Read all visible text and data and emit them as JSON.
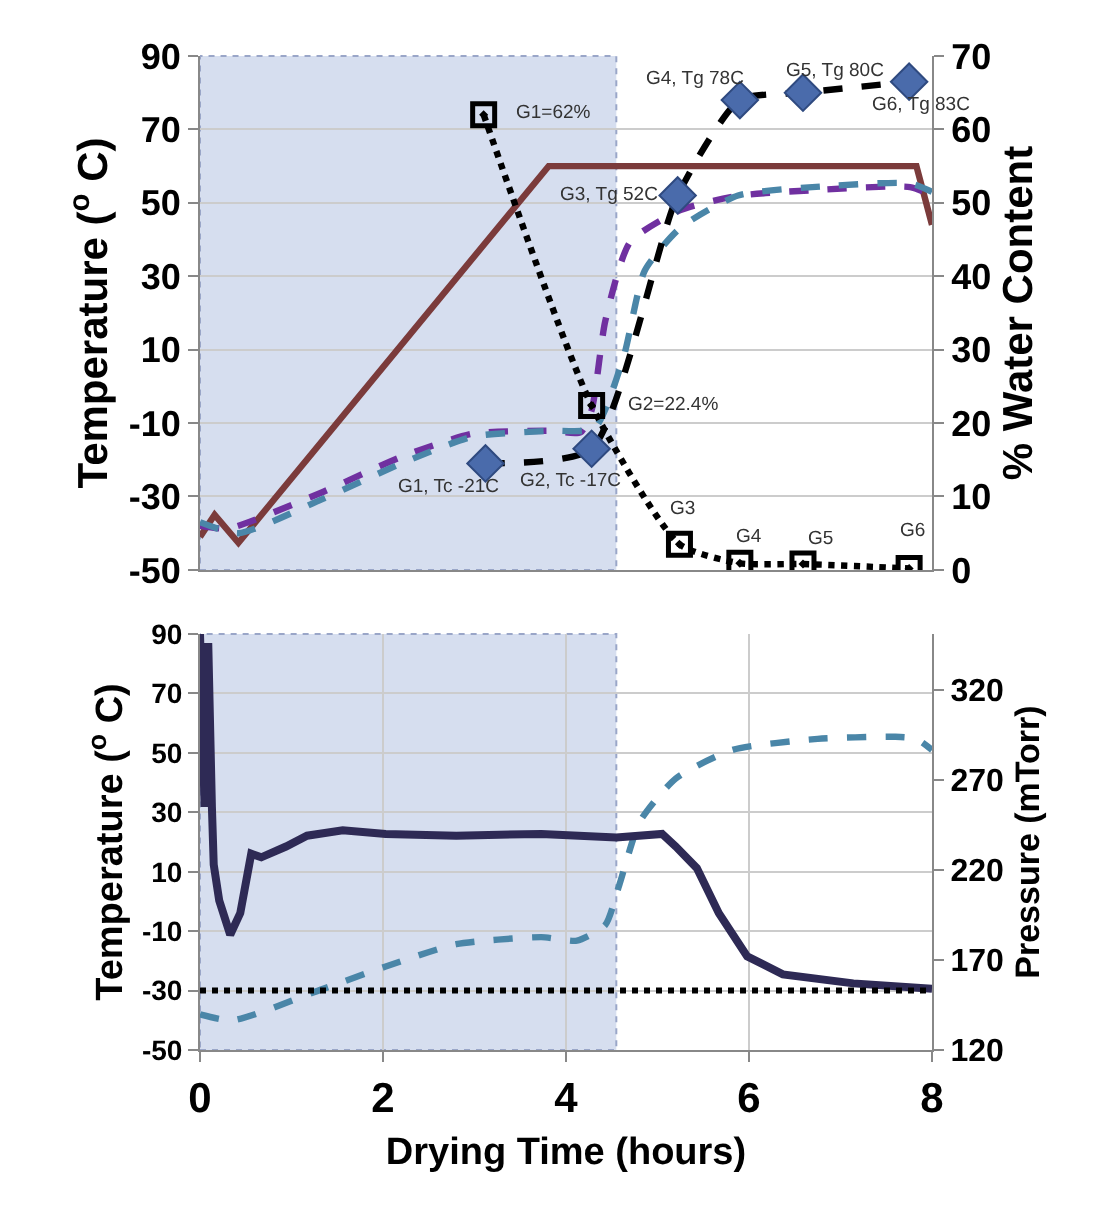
{
  "chart_data": [
    {
      "type": "line",
      "ylabel": "Temperature ($^{o}$ C)",
      "y2label": "% Water Content",
      "xlim": [
        0,
        8
      ],
      "ylim": [
        -50,
        90
      ],
      "yticks": [
        -50,
        -30,
        -10,
        10,
        30,
        50,
        70,
        90
      ],
      "y2lim": [
        0,
        70
      ],
      "y2ticks": [
        0,
        10,
        20,
        30,
        40,
        50,
        60,
        70
      ],
      "tick_labels": "y",
      "grid": "y",
      "bands": [
        {
          "axis": "x",
          "from": 0,
          "to": 4.55,
          "color": "#d6deef"
        }
      ],
      "series": [
        {
          "color": "#7b3b3b",
          "line_style": "solid",
          "marker": "none",
          "x": [
            0,
            0.16,
            0.42,
            3.81,
            7.83,
            8
          ],
          "values": [
            -41,
            -35,
            -42.6,
            60,
            60,
            44
          ]
        },
        {
          "color": "#7030a0",
          "line_style": "dashed",
          "marker": "none",
          "x": [
            0,
            0.31,
            1.33,
            2.2,
            2.98,
            3.81,
            4.16,
            4.28,
            4.43,
            4.7,
            5.25,
            5.88,
            6.67,
            7.76,
            8
          ],
          "values": [
            -38,
            -38.7,
            -28.9,
            -19.2,
            -12.9,
            -12.1,
            -12.5,
            -6.5,
            17.9,
            39.3,
            48,
            51.9,
            53.4,
            54.3,
            52
          ]
        },
        {
          "color": "#4a86a8",
          "line_style": "dashed",
          "marker": "none",
          "x": [
            0,
            0.42,
            1.33,
            2.2,
            2.98,
            3.81,
            4.31,
            4.63,
            4.86,
            5.25,
            5.88,
            6.82,
            7.76,
            8
          ],
          "values": [
            -37,
            -40,
            -30.8,
            -21,
            -13.7,
            -12.1,
            -11.4,
            8.1,
            31.5,
            43.2,
            52,
            54.5,
            55.3,
            53
          ]
        },
        {
          "color": "#000000",
          "line_style": "dashed",
          "marker": "none",
          "x": [
            3.12,
            4.28,
            5.22,
            5.9,
            6.59,
            7.75
          ],
          "values": [
            -21,
            -17,
            52,
            78,
            80,
            83
          ]
        },
        {
          "type": "scatter",
          "color": "#4a6bab",
          "marker": "diamond",
          "x": [
            3.12,
            4.28,
            5.22,
            5.9,
            6.59,
            7.75
          ],
          "values": [
            -21,
            -17,
            52,
            78,
            80,
            83
          ]
        },
        {
          "axis": "y2",
          "color": "#000000",
          "line_style": "dotted",
          "marker": "square",
          "x": [
            3.1,
            4.28,
            5.24,
            5.9,
            6.59,
            7.75
          ],
          "values": [
            62,
            22.4,
            3.5,
            0.9,
            0.8,
            0.2
          ]
        }
      ],
      "annotations": [
        {
          "text": "G1, Tc -21C",
          "x": 3.12,
          "y": -21
        },
        {
          "text": "G2, Tc -17C",
          "x": 4.28,
          "y": -17
        },
        {
          "text": "G3, Tg 52C",
          "x": 5.22,
          "y": 52
        },
        {
          "text": "G4, Tg 78C",
          "x": 5.9,
          "y": 78
        },
        {
          "text": "G5, Tg 80C",
          "x": 6.59,
          "y": 80
        },
        {
          "text": "G6, Tg 83C",
          "x": 7.75,
          "y": 83
        },
        {
          "text": "G1=62%",
          "x": 3.1,
          "y": 74
        },
        {
          "text": "G2=22.4%",
          "x": 4.28,
          "y": -5.2
        },
        {
          "text": "G3",
          "x": 5.24,
          "y": -43
        },
        {
          "text": "G4",
          "x": 5.9,
          "y": -48.2
        },
        {
          "text": "G5",
          "x": 6.59,
          "y": -48.4
        },
        {
          "text": "G6",
          "x": 7.75,
          "y": -49.6
        }
      ]
    },
    {
      "type": "line",
      "xlabel": "Drying Time (hours)",
      "ylabel": "Temperature ($^{o}$ C)",
      "y2label": "Pressure (mTorr)",
      "xlim": [
        0,
        8
      ],
      "xticks": [
        0,
        2,
        4,
        6,
        8
      ],
      "ylim": [
        -50,
        90
      ],
      "yticks": [
        -50,
        -30,
        -10,
        10,
        30,
        50,
        70,
        90
      ],
      "y2lim": [
        120,
        351
      ],
      "y2ticks": [
        120,
        170,
        220,
        270,
        320
      ],
      "grid": true,
      "bands": [
        {
          "axis": "x",
          "from": 0,
          "to": 4.55,
          "color": "#d6deef"
        }
      ],
      "ref_lines": [
        {
          "axis": "y",
          "value": -30,
          "color": "#000000",
          "line_style": "dotted"
        }
      ],
      "series": [
        {
          "color": "#4a86a8",
          "line_style": "dashed",
          "marker": "none",
          "x": [
            0,
            0.36,
            1.33,
            2.03,
            2.8,
            3.73,
            4.12,
            4.43,
            4.58,
            4.81,
            5.2,
            5.82,
            6.75,
            7.6,
            7.83,
            8
          ],
          "values": [
            -38,
            -40,
            -29.6,
            -21.9,
            -14.4,
            -12,
            -13.2,
            -7.9,
            5.3,
            27,
            41.4,
            51,
            54.7,
            55.4,
            54.7,
            51
          ]
        },
        {
          "axis": "y2",
          "color": "#2e2a55",
          "line_style": "solid",
          "marker": "none",
          "x": [
            0,
            0.05,
            0.09,
            0.13,
            0.15,
            0.21,
            0.33,
            0.44,
            0.56,
            0.67,
            0.94,
            1.17,
            1.56,
            2.03,
            2.8,
            3.73,
            4.55,
            5.05,
            5.2,
            5.43,
            5.67,
            5.98,
            6.37,
            7.14,
            8
          ],
          "values": [
            351,
            255,
            346,
            255,
            223,
            203,
            184,
            196,
            229,
            227,
            233,
            239,
            242,
            240,
            239,
            240,
            238,
            240,
            233,
            221,
            196,
            172,
            162,
            157,
            154
          ]
        }
      ]
    }
  ]
}
